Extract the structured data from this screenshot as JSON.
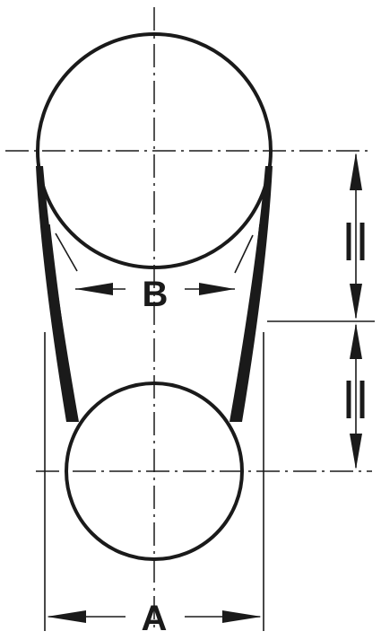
{
  "labels": {
    "outer_width": "A",
    "inner_width": "B"
  },
  "equal_marks": {
    "upper_span": "=",
    "lower_span": "="
  },
  "ink_color": "#1a1a1a",
  "background_color": "#ffffff"
}
